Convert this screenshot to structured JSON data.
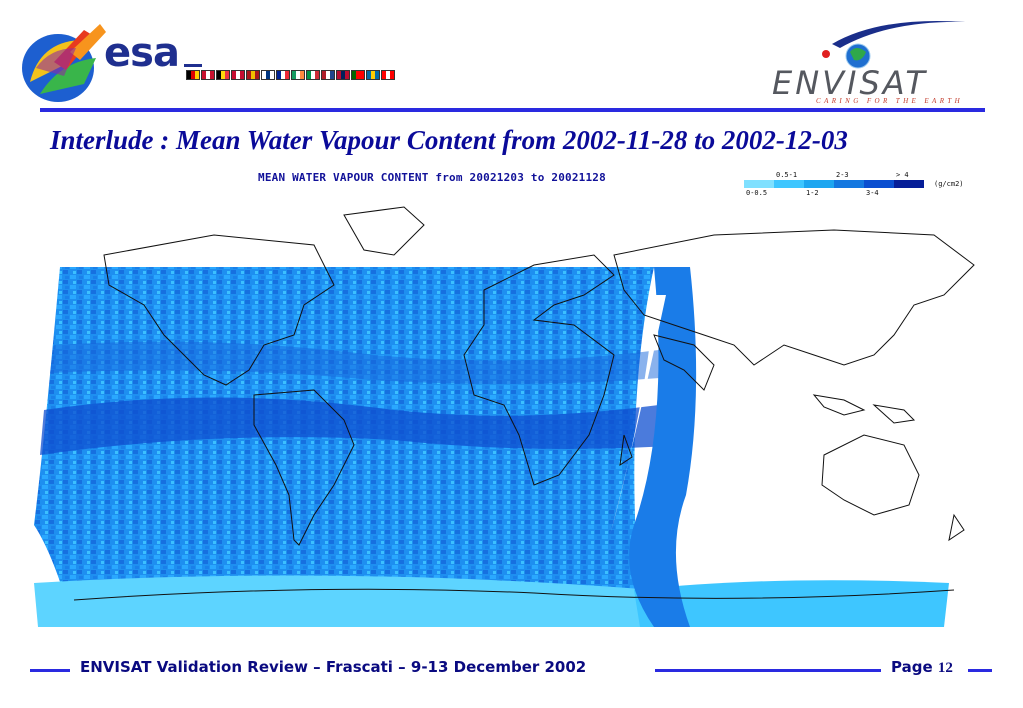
{
  "header": {
    "esa_logo_text": "esa",
    "envisat_logo_text": "ENVISAT",
    "envisat_tagline": "CARING FOR THE EARTH",
    "flag_colors": [
      [
        "#000000",
        "#dd0000",
        "#ffce00"
      ],
      [
        "#c8102e",
        "#ffffff",
        "#c8102e"
      ],
      [
        "#000000",
        "#ffd90c",
        "#ef3340"
      ],
      [
        "#c60c30",
        "#ffffff",
        "#c60c30"
      ],
      [
        "#aa151b",
        "#f1bf00",
        "#aa151b"
      ],
      [
        "#ffffff",
        "#003580",
        "#ffffff"
      ],
      [
        "#002395",
        "#ffffff",
        "#ed2939"
      ],
      [
        "#169b62",
        "#ffffff",
        "#ff883e"
      ],
      [
        "#009246",
        "#ffffff",
        "#ce2b37"
      ],
      [
        "#ae1c28",
        "#ffffff",
        "#21468b"
      ],
      [
        "#ba0c2f",
        "#00205b",
        "#ba0c2f"
      ],
      [
        "#006600",
        "#ff0000",
        "#ff0000"
      ],
      [
        "#006aa7",
        "#fecc00",
        "#006aa7"
      ],
      [
        "#ff0000",
        "#ffffff",
        "#ff0000"
      ]
    ]
  },
  "title": "Interlude : Mean Water Vapour Content from 2002-11-28 to 2002-12-03",
  "map": {
    "title": "MEAN WATER VAPOUR CONTENT from 20021203 to 20021128",
    "legend": {
      "unit": "(g/cm2)",
      "classes": [
        {
          "label": "0-0.5",
          "color": "#7fe0ff"
        },
        {
          "label": "0.5-1",
          "color": "#3ec6ff"
        },
        {
          "label": "1-2",
          "color": "#1ea6f0"
        },
        {
          "label": "2-3",
          "color": "#1478e0"
        },
        {
          "label": "3-4",
          "color": "#0a4ed0"
        },
        {
          "label": "> 4",
          "color": "#061e98"
        }
      ]
    }
  },
  "footer": {
    "text": "ENVISAT Validation Review – Frascati – 9-13 December 2002",
    "page_label": "Page",
    "page_number": "12"
  }
}
